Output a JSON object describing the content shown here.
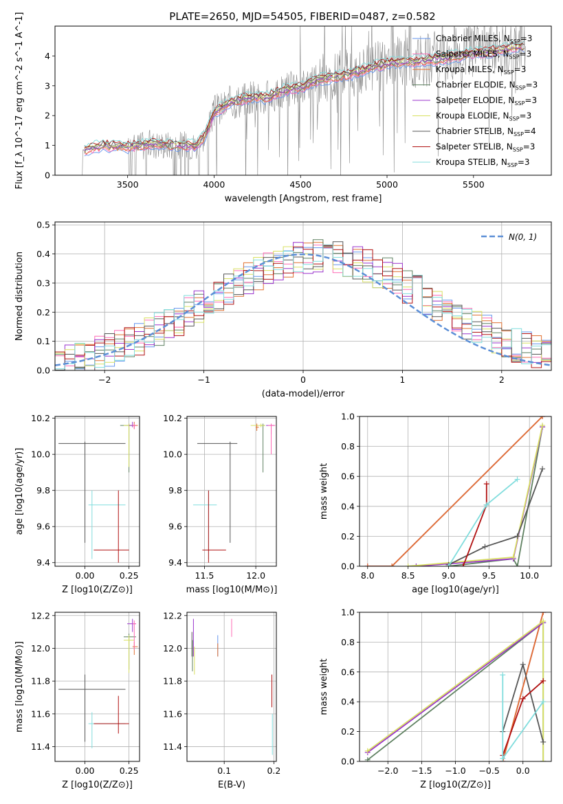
{
  "figure": {
    "title": "PLATE=2650, MJD=54505, FIBERID=0487, z=0.582"
  },
  "models": [
    {
      "name": "Chabrier MILES",
      "nssp": "3",
      "color": "#6495ED"
    },
    {
      "name": "Salpeter MILES",
      "nssp": "3",
      "color": "#FF69B4"
    },
    {
      "name": "Kroupa MILES",
      "nssp": "3",
      "color": "#E07030"
    },
    {
      "name": "Chabrier ELODIE",
      "nssp": "3",
      "color": "#5E8060"
    },
    {
      "name": "Salpeter ELODIE",
      "nssp": "3",
      "color": "#9932CC"
    },
    {
      "name": "Kroupa ELODIE",
      "nssp": "3",
      "color": "#D8E060"
    },
    {
      "name": "Chabrier STELIB",
      "nssp": "4",
      "color": "#555555"
    },
    {
      "name": "Salpeter STELIB",
      "nssp": "3",
      "color": "#B01010"
    },
    {
      "name": "Kroupa STELIB",
      "nssp": "3",
      "color": "#80DDDD"
    }
  ],
  "chart_data": [
    {
      "id": "spectrum",
      "type": "line",
      "xlabel": "wavelength [Angstrom, rest frame]",
      "ylabel": "Flux [f_λ 10^-17 erg cm^-2 s^-1 A^-1]",
      "xlim": [
        3080,
        5950
      ],
      "ylim": [
        0,
        5
      ],
      "xticks": [
        3500,
        4000,
        4500,
        5000,
        5500
      ],
      "yticks": [
        0,
        1,
        2,
        3,
        4
      ],
      "data_color": "#888888",
      "model_continuum": {
        "x": [
          3250,
          3350,
          3500,
          3650,
          3800,
          3900,
          3950,
          4000,
          4100,
          4200,
          4300,
          4400,
          4500,
          4600,
          4700,
          4800,
          4900,
          5000,
          5100,
          5200,
          5300,
          5400,
          5500,
          5600,
          5700,
          5800
        ],
        "y": [
          0.85,
          1.0,
          0.95,
          1.05,
          1.0,
          1.0,
          1.35,
          2.1,
          2.45,
          2.6,
          2.6,
          2.85,
          2.95,
          3.2,
          3.3,
          3.4,
          3.6,
          3.75,
          3.8,
          3.85,
          3.9,
          4.0,
          4.1,
          4.15,
          4.25,
          4.35
        ]
      }
    },
    {
      "id": "residuals",
      "type": "line",
      "xlabel": "(data-model)/error",
      "ylabel": "Normed distribution",
      "xlim": [
        -2.5,
        2.5
      ],
      "ylim": [
        0,
        0.51
      ],
      "xticks": [
        -2,
        -1,
        0,
        1,
        2
      ],
      "yticks": [
        0.0,
        0.1,
        0.2,
        0.3,
        0.4,
        0.5
      ],
      "gaussian_label": "N(0, 1)",
      "gaussian_color": "#5B8ED6"
    },
    {
      "id": "age_vs_Z",
      "type": "scatter",
      "xlabel": "Z [log10(Z/Z⊙)]",
      "ylabel": "age [log10(age/yr)]",
      "xlim": [
        -0.17,
        0.31
      ],
      "ylim": [
        9.38,
        10.21
      ],
      "xticks": [
        0.0,
        0.25
      ],
      "yticks": [
        9.4,
        9.6,
        9.8,
        10.0,
        10.2
      ],
      "points": [
        {
          "model": 6,
          "x": 0.0,
          "y": 10.06,
          "xerr": [
            0.15,
            0.23
          ],
          "yerr": [
            0.55,
            0.01
          ]
        },
        {
          "model": 8,
          "x": 0.04,
          "y": 9.72,
          "xerr": [
            0.02,
            0.19
          ],
          "yerr": [
            0.3,
            0.08
          ]
        },
        {
          "model": 7,
          "x": 0.19,
          "y": 9.47,
          "xerr": [
            0.14,
            0.06
          ],
          "yerr": [
            0.07,
            0.33
          ]
        },
        {
          "model": 3,
          "x": 0.25,
          "y": 10.16,
          "xerr": [
            0.05,
            0.04
          ],
          "yerr": [
            0.26,
            0.01
          ]
        },
        {
          "model": 5,
          "x": 0.25,
          "y": 10.16,
          "xerr": [
            0.03,
            0.03
          ],
          "yerr": [
            0.23,
            0.01
          ]
        },
        {
          "model": 4,
          "x": 0.27,
          "y": 10.16,
          "xerr": [
            0.02,
            0.02
          ],
          "yerr": [
            0.01,
            0.02
          ]
        },
        {
          "model": 2,
          "x": 0.28,
          "y": 10.16,
          "xerr": [
            0.01,
            0.02
          ],
          "yerr": [
            0.02,
            0.02
          ]
        },
        {
          "model": 1,
          "x": 0.28,
          "y": 10.16,
          "xerr": [
            0.01,
            0.01
          ],
          "yerr": [
            0.02,
            0.01
          ]
        }
      ]
    },
    {
      "id": "age_vs_mass",
      "type": "scatter",
      "xlabel": "mass [log10(M/M⊙)]",
      "ylabel": "",
      "xlim": [
        11.33,
        12.2
      ],
      "ylim": [
        9.38,
        10.21
      ],
      "xticks": [
        11.5,
        12.0
      ],
      "yticks": [
        9.4,
        9.6,
        9.8,
        10.0,
        10.2
      ],
      "points": [
        {
          "model": 6,
          "x": 11.75,
          "y": 10.06,
          "xerr": [
            0.32,
            0.07
          ],
          "yerr": [
            0.55,
            0.01
          ]
        },
        {
          "model": 8,
          "x": 11.54,
          "y": 9.72,
          "xerr": [
            0.15,
            0.08
          ],
          "yerr": [
            0.3,
            0.08
          ]
        },
        {
          "model": 7,
          "x": 11.54,
          "y": 9.47,
          "xerr": [
            0.06,
            0.17
          ],
          "yerr": [
            0.07,
            0.33
          ]
        },
        {
          "model": 3,
          "x": 12.07,
          "y": 10.16,
          "xerr": [
            0.02,
            0.02
          ],
          "yerr": [
            0.26,
            0.01
          ]
        },
        {
          "model": 5,
          "x": 12.05,
          "y": 10.16,
          "xerr": [
            0.1,
            0.04
          ],
          "yerr": [
            0.01,
            0.01
          ]
        },
        {
          "model": 4,
          "x": 12.15,
          "y": 10.16,
          "xerr": [
            0.05,
            0.03
          ],
          "yerr": [
            0.05,
            0.01
          ]
        },
        {
          "model": 2,
          "x": 12.01,
          "y": 10.15,
          "xerr": [
            0.01,
            0.02
          ],
          "yerr": [
            0.02,
            0.02
          ]
        },
        {
          "model": 1,
          "x": 12.15,
          "y": 10.16,
          "xerr": [
            0.03,
            0.04
          ],
          "yerr": [
            0.16,
            0.01
          ]
        }
      ]
    },
    {
      "id": "weight_vs_age",
      "type": "line",
      "xlabel": "age [log10(age/yr)]",
      "ylabel": "mass weight",
      "xlim": [
        7.9,
        10.27
      ],
      "ylim": [
        0,
        1
      ],
      "xticks": [
        8.0,
        8.5,
        9.0,
        9.5,
        10.0
      ],
      "yticks": [
        0.0,
        0.2,
        0.4,
        0.6,
        0.8,
        1.0
      ],
      "series": [
        {
          "model": 0,
          "x": [
            8.0,
            8.3,
            10.16
          ],
          "y": [
            0.0,
            0.0,
            1.0
          ]
        },
        {
          "model": 1,
          "x": [
            8.0,
            8.3,
            10.16
          ],
          "y": [
            0.0,
            0.0,
            1.0
          ]
        },
        {
          "model": 2,
          "x": [
            8.0,
            8.3,
            10.16
          ],
          "y": [
            0.0,
            0.0,
            1.0
          ]
        },
        {
          "model": 3,
          "x": [
            9.0,
            9.8,
            9.85,
            10.16
          ],
          "y": [
            0.0,
            0.05,
            0.0,
            0.93
          ]
        },
        {
          "model": 4,
          "x": [
            8.6,
            9.8,
            10.16
          ],
          "y": [
            0.0,
            0.05,
            0.93
          ]
        },
        {
          "model": 5,
          "x": [
            8.5,
            9.8,
            10.16
          ],
          "y": [
            0.0,
            0.06,
            0.94
          ]
        },
        {
          "model": 6,
          "x": [
            9.0,
            9.45,
            9.85,
            10.16
          ],
          "y": [
            0.01,
            0.13,
            0.2,
            0.65
          ]
        },
        {
          "model": 7,
          "x": [
            9.18,
            9.47,
            9.47
          ],
          "y": [
            0.0,
            0.41,
            0.55
          ]
        },
        {
          "model": 8,
          "x": [
            9.0,
            9.47,
            9.85
          ],
          "y": [
            0.0,
            0.41,
            0.58
          ]
        }
      ]
    },
    {
      "id": "mass_vs_Z",
      "type": "scatter",
      "xlabel": "Z [log10(Z/Z⊙)]",
      "ylabel": "mass [log10(M/M⊙)]",
      "xlim": [
        -0.17,
        0.31
      ],
      "ylim": [
        11.31,
        12.22
      ],
      "xticks": [
        0.0,
        0.25
      ],
      "yticks": [
        11.4,
        11.6,
        11.8,
        12.0,
        12.2
      ],
      "points": [
        {
          "model": 6,
          "x": 0.0,
          "y": 11.75,
          "xerr": [
            0.15,
            0.23
          ],
          "yerr": [
            0.32,
            0.09
          ]
        },
        {
          "model": 8,
          "x": 0.04,
          "y": 11.54,
          "xerr": [
            0.02,
            0.19
          ],
          "yerr": [
            0.15,
            0.07
          ]
        },
        {
          "model": 7,
          "x": 0.19,
          "y": 11.54,
          "xerr": [
            0.14,
            0.06
          ],
          "yerr": [
            0.06,
            0.17
          ]
        },
        {
          "model": 3,
          "x": 0.25,
          "y": 12.07,
          "xerr": [
            0.03,
            0.04
          ],
          "yerr": [
            0.2,
            0.02
          ]
        },
        {
          "model": 5,
          "x": 0.25,
          "y": 12.05,
          "xerr": [
            0.03,
            0.03
          ],
          "yerr": [
            0.2,
            0.03
          ]
        },
        {
          "model": 4,
          "x": 0.27,
          "y": 12.15,
          "xerr": [
            0.03,
            0.02
          ],
          "yerr": [
            0.05,
            0.03
          ]
        },
        {
          "model": 2,
          "x": 0.28,
          "y": 12.01,
          "xerr": [
            0.01,
            0.02
          ],
          "yerr": [
            0.05,
            0.03
          ]
        },
        {
          "model": 1,
          "x": 0.28,
          "y": 12.15,
          "xerr": [
            0.01,
            0.01
          ],
          "yerr": [
            0.16,
            0.02
          ]
        }
      ]
    },
    {
      "id": "mass_vs_ebv",
      "type": "scatter",
      "xlabel": "E(B-V)",
      "ylabel": "",
      "xlim": [
        0.025,
        0.205
      ],
      "ylim": [
        11.31,
        12.22
      ],
      "xticks": [
        0.1,
        0.2
      ],
      "yticks": [
        11.4,
        11.6,
        11.8,
        12.0,
        12.2
      ],
      "points": [
        {
          "model": 6,
          "x": 0.035,
          "y": 12.0,
          "xerr": [
            0.0,
            0.0
          ],
          "yerr": [
            0.05,
            0.1
          ]
        },
        {
          "model": 4,
          "x": 0.038,
          "y": 12.05,
          "xerr": [
            0.0,
            0.0
          ],
          "yerr": [
            0.1,
            0.13
          ]
        },
        {
          "model": 3,
          "x": 0.036,
          "y": 12.0,
          "xerr": [
            0.0,
            0.0
          ],
          "yerr": [
            0.14,
            0.05
          ]
        },
        {
          "model": 5,
          "x": 0.04,
          "y": 11.98,
          "xerr": [
            0.0,
            0.0
          ],
          "yerr": [
            0.14,
            0.03
          ]
        },
        {
          "model": 0,
          "x": 0.087,
          "y": 12.02,
          "xerr": [
            0.0,
            0.0
          ],
          "yerr": [
            0.07,
            0.06
          ]
        },
        {
          "model": 2,
          "x": 0.087,
          "y": 12.0,
          "xerr": [
            0.0,
            0.0
          ],
          "yerr": [
            0.05,
            0.03
          ]
        },
        {
          "model": 1,
          "x": 0.115,
          "y": 12.13,
          "xerr": [
            0.0,
            0.0
          ],
          "yerr": [
            0.06,
            0.05
          ]
        },
        {
          "model": 7,
          "x": 0.196,
          "y": 11.7,
          "xerr": [
            0.0,
            0.0
          ],
          "yerr": [
            0.06,
            0.14
          ]
        },
        {
          "model": 8,
          "x": 0.197,
          "y": 11.45,
          "xerr": [
            0.0,
            0.0
          ],
          "yerr": [
            0.1,
            0.15
          ]
        }
      ]
    },
    {
      "id": "weight_vs_Z",
      "type": "line",
      "xlabel": "Z [log10(Z/Z⊙)]",
      "ylabel": "mass weight",
      "xlim": [
        -2.42,
        0.42
      ],
      "ylim": [
        0,
        1
      ],
      "xticks": [
        -2.0,
        -1.5,
        -1.0,
        -0.5,
        0.0
      ],
      "yticks": [
        0.0,
        0.2,
        0.4,
        0.6,
        0.8,
        1.0
      ],
      "series": [
        {
          "model": 0,
          "x": [
            -0.3,
            0.3
          ],
          "y": [
            0.0,
            1.0
          ]
        },
        {
          "model": 1,
          "x": [
            -0.3,
            0.3
          ],
          "y": [
            0.0,
            1.0
          ]
        },
        {
          "model": 2,
          "x": [
            -0.3,
            0.3
          ],
          "y": [
            0.0,
            1.0
          ]
        },
        {
          "model": 3,
          "x": [
            -2.3,
            0.3,
            0.3
          ],
          "y": [
            0.01,
            0.93,
            0.0
          ]
        },
        {
          "model": 4,
          "x": [
            -2.3,
            0.3
          ],
          "y": [
            0.06,
            0.93
          ]
        },
        {
          "model": 5,
          "x": [
            -2.3,
            0.3,
            0.3
          ],
          "y": [
            0.07,
            0.94,
            0.0
          ]
        },
        {
          "model": 6,
          "x": [
            -0.3,
            0.0,
            0.3
          ],
          "y": [
            0.2,
            0.65,
            0.13
          ]
        },
        {
          "model": 7,
          "x": [
            -0.3,
            0.0,
            0.3
          ],
          "y": [
            0.04,
            0.42,
            0.54
          ]
        },
        {
          "model": 8,
          "x": [
            -0.3,
            -0.3,
            0.3
          ],
          "y": [
            0.58,
            0.02,
            0.4
          ]
        }
      ]
    }
  ]
}
